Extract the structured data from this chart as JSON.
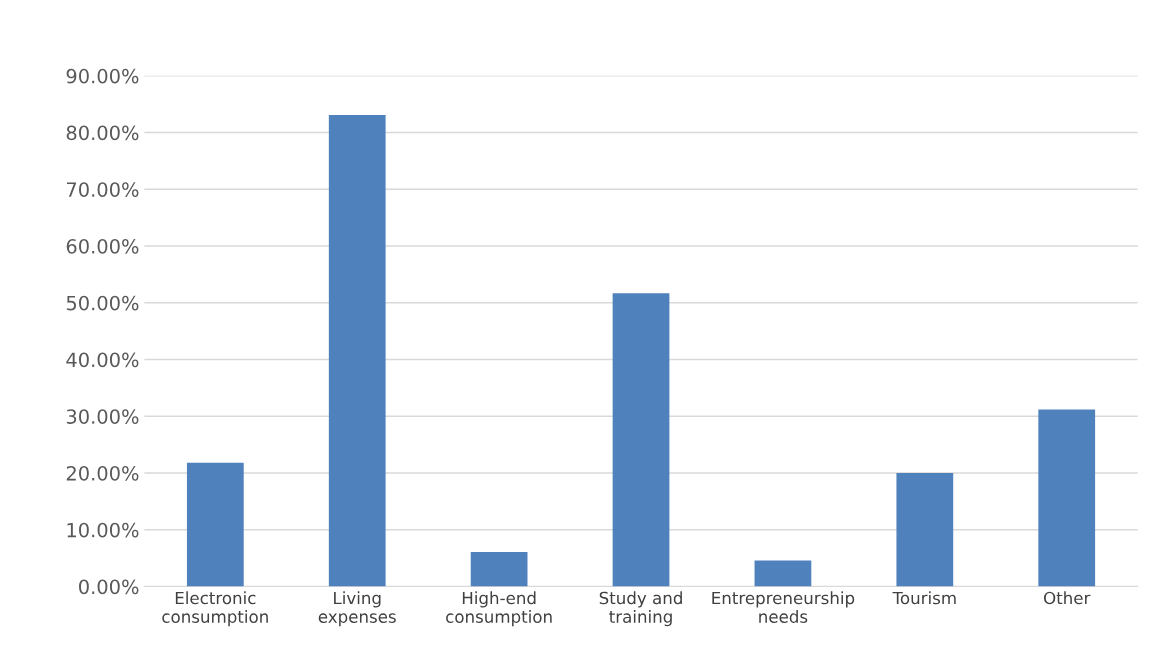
{
  "chart_data": {
    "type": "bar",
    "categories": [
      "Electronic\nconsumption",
      "Living\nexpenses",
      "High-end\nconsumption",
      "Study and\ntraining",
      "Entrepreneurship\nneeds",
      "Tourism",
      "Other"
    ],
    "values": [
      21.8,
      83.1,
      6.1,
      51.7,
      4.6,
      20.0,
      31.2
    ],
    "color": "#4f81bd",
    "ylim": [
      0,
      90
    ],
    "yticks": [
      {
        "value": 0,
        "label": "0.00%"
      },
      {
        "value": 10,
        "label": "10.00%"
      },
      {
        "value": 20,
        "label": "20.00%"
      },
      {
        "value": 30,
        "label": "30.00%"
      },
      {
        "value": 40,
        "label": "40.00%"
      },
      {
        "value": 50,
        "label": "50.00%"
      },
      {
        "value": 60,
        "label": "60.00%"
      },
      {
        "value": 70,
        "label": "70.00%"
      },
      {
        "value": 80,
        "label": "80.00%"
      },
      {
        "value": 90,
        "label": "90.00%"
      }
    ],
    "grid": "y"
  }
}
